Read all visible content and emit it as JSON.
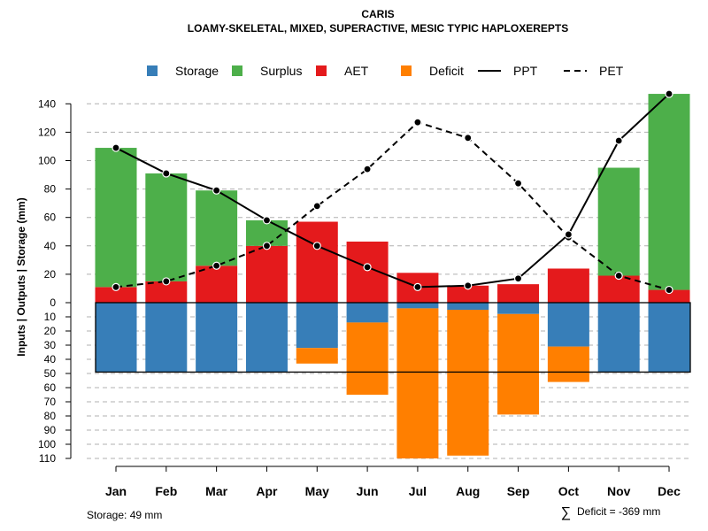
{
  "chart_data": {
    "type": "bar",
    "title": "CARIS",
    "subtitle": "LOAMY-SKELETAL, MIXED, SUPERACTIVE, MESIC TYPIC HAPLOXEREPTS",
    "ylabel": "Inputs | Outputs | Storage    (mm)",
    "categories": [
      "Jan",
      "Feb",
      "Mar",
      "Apr",
      "May",
      "Jun",
      "Jul",
      "Aug",
      "Sep",
      "Oct",
      "Nov",
      "Dec"
    ],
    "ylim": [
      -110,
      150
    ],
    "yticks_up": [
      "140",
      "120",
      "100",
      "80",
      "60",
      "40",
      "20",
      "0"
    ],
    "yticks_up_values": [
      140,
      120,
      100,
      80,
      60,
      40,
      20,
      0
    ],
    "yticks_down": [
      "10",
      "20",
      "30",
      "40",
      "50",
      "60",
      "70",
      "80",
      "90",
      "100",
      "110"
    ],
    "yticks_down_values": [
      10,
      20,
      30,
      40,
      50,
      60,
      70,
      80,
      90,
      100,
      110
    ],
    "legend": {
      "position": "top",
      "entries": [
        {
          "label": "Storage",
          "kind": "box",
          "color": "#377eb8"
        },
        {
          "label": "Surplus",
          "kind": "box",
          "color": "#4daf4a"
        },
        {
          "label": "AET",
          "kind": "box",
          "color": "#e41a1c"
        },
        {
          "label": "Deficit",
          "kind": "box",
          "color": "#ff7f00"
        },
        {
          "label": "PPT",
          "kind": "solid",
          "color": "#000000"
        },
        {
          "label": "PET",
          "kind": "dashed",
          "color": "#000000"
        }
      ]
    },
    "series": [
      {
        "name": "AET",
        "color": "#e41a1c",
        "values": [
          11,
          15,
          26,
          40,
          57,
          43,
          21,
          12,
          13,
          24,
          19,
          9
        ]
      },
      {
        "name": "Surplus",
        "color": "#4daf4a",
        "values": [
          98,
          76,
          53,
          18,
          0,
          0,
          0,
          0,
          0,
          0,
          76,
          138
        ]
      },
      {
        "name": "Storage",
        "color": "#377eb8",
        "values": [
          49,
          49,
          49,
          49,
          32,
          14,
          4,
          5,
          8,
          31,
          49,
          49
        ]
      },
      {
        "name": "Deficit",
        "color": "#ff7f00",
        "values": [
          0,
          0,
          0,
          0,
          11,
          51,
          106,
          103,
          71,
          25,
          0,
          0
        ]
      },
      {
        "name": "PPT",
        "color": "#000000",
        "values": [
          109,
          91,
          79,
          58,
          40,
          25,
          11,
          12,
          17,
          48,
          114,
          147
        ]
      },
      {
        "name": "PET",
        "color": "#000000",
        "values": [
          11,
          15,
          26,
          40,
          68,
          94,
          127,
          116,
          84,
          46,
          19,
          9
        ]
      }
    ],
    "storage_capacity": 49
  },
  "footer": {
    "storage_text": "Storage: 49 mm",
    "deficit_symbol": "∑",
    "deficit_text": "Deficit = -369 mm"
  }
}
